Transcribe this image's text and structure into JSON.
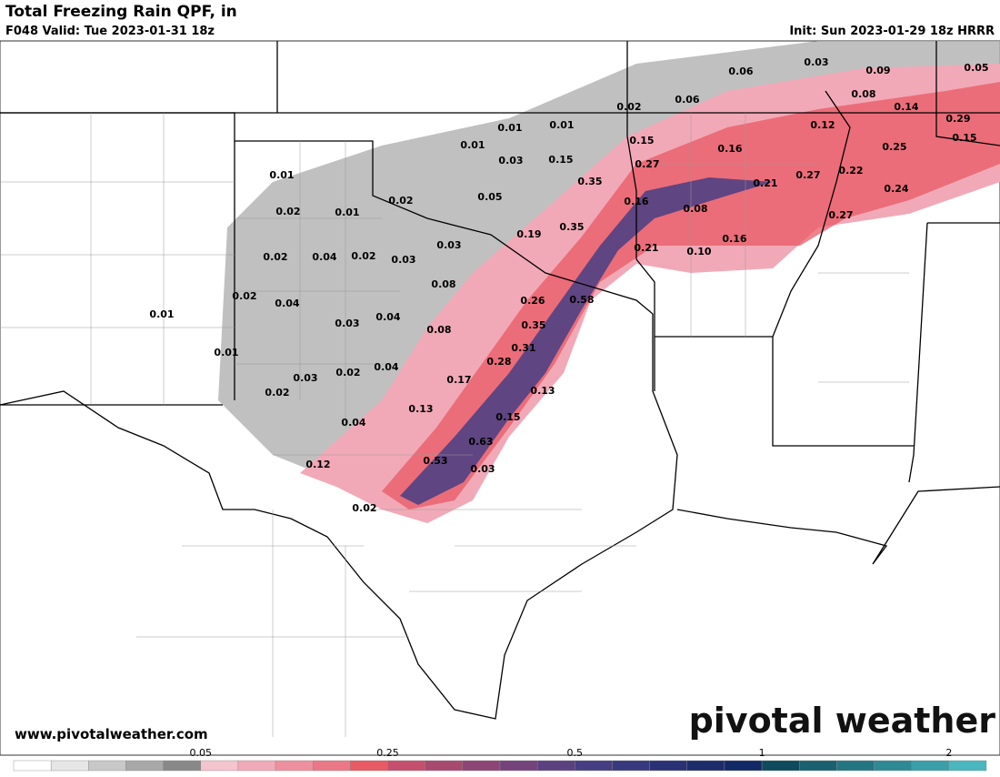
{
  "header": {
    "title": "Total Freezing Rain QPF, in",
    "valid": "F048 Valid: Tue 2023-01-31 18z",
    "init": "Init: Sun 2023-01-29 18z HRRR"
  },
  "map": {
    "point_labels": [
      "0.06",
      "0.03",
      "0.09",
      "0.05",
      "0.08",
      "0.14",
      "0.02",
      "0.06",
      "0.29",
      "0.12",
      "0.15",
      "0.01",
      "0.01",
      "0.15",
      "0.16",
      "0.25",
      "0.01",
      "0.03",
      "0.15",
      "0.27",
      "0.01",
      "0.22",
      "0.27",
      "0.21",
      "0.35",
      "0.05",
      "0.02",
      "0.24",
      "0.16",
      "0.08",
      "0.02",
      "0.01",
      "0.27",
      "0.35",
      "0.19",
      "0.16",
      "0.03",
      "0.21",
      "0.10",
      "0.02",
      "0.04",
      "0.02",
      "0.03",
      "0.08",
      "0.02",
      "0.04",
      "0.26",
      "0.58",
      "0.01",
      "0.04",
      "0.03",
      "0.35",
      "0.08",
      "0.31",
      "0.01",
      "0.28",
      "0.03",
      "0.02",
      "0.04",
      "0.17",
      "0.02",
      "0.13",
      "0.13",
      "0.04",
      "0.15",
      "0.63",
      "0.53",
      "0.12",
      "0.03",
      "0.02"
    ]
  },
  "footer": {
    "website": "www.pivotalweather.com",
    "logo": "pivotal weather"
  },
  "colorbar": {
    "labels": [
      "0.05",
      "0.25",
      "0.5",
      "1",
      "2"
    ],
    "colors": [
      "#ffffff",
      "#e6e6e6",
      "#c8c8c8",
      "#a8a8a8",
      "#888888",
      "#f4c4cf",
      "#f1aab8",
      "#ee909f",
      "#ea7886",
      "#e85a64",
      "#c4506d",
      "#a84a70",
      "#8c4575",
      "#74437c",
      "#5c4180",
      "#463e82",
      "#37397e",
      "#2a3276",
      "#1e2c6c",
      "#132866",
      "#0f4a5e",
      "#1a6070",
      "#247582",
      "#2e8a94",
      "#3a9fa8",
      "#4ab6bf"
    ]
  }
}
